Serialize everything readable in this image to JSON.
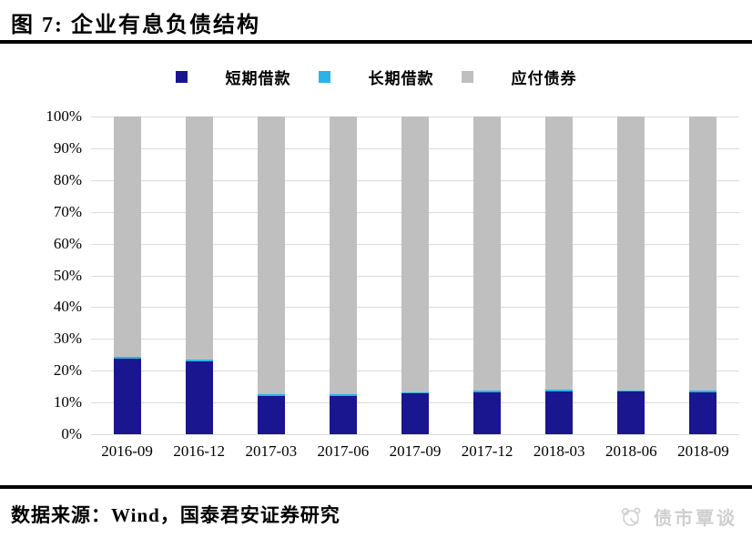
{
  "header": {
    "title": "图 7: 企业有息负债结构"
  },
  "legend": {
    "items": [
      {
        "label": "短期借款",
        "color": "#19168f"
      },
      {
        "label": "长期借款",
        "color": "#2bb3e8"
      },
      {
        "label": "应付债券",
        "color": "#bfbfbf"
      }
    ]
  },
  "chart_data": {
    "type": "bar",
    "stacked": true,
    "unit": "percent",
    "title": "企业有息负债结构",
    "categories": [
      "2016-09",
      "2016-12",
      "2017-03",
      "2017-06",
      "2017-09",
      "2017-12",
      "2018-03",
      "2018-06",
      "2018-09"
    ],
    "series": [
      {
        "name": "短期借款",
        "color": "#19168f",
        "values": [
          23.7,
          22.8,
          12.0,
          12.1,
          12.8,
          13.2,
          13.5,
          13.4,
          13.1
        ]
      },
      {
        "name": "长期借款",
        "color": "#2bb3e8",
        "values": [
          0.6,
          0.6,
          0.5,
          0.5,
          0.5,
          0.5,
          0.5,
          0.5,
          0.6
        ]
      },
      {
        "name": "应付债券",
        "color": "#bfbfbf",
        "values": [
          75.7,
          76.6,
          87.5,
          87.4,
          86.7,
          86.3,
          86.0,
          86.1,
          86.3
        ]
      }
    ],
    "ylim": [
      0,
      100
    ],
    "yticks": [
      "100%",
      "90%",
      "80%",
      "70%",
      "60%",
      "50%",
      "40%",
      "30%",
      "20%",
      "10%",
      "0%"
    ],
    "grid": true,
    "legend_position": "top"
  },
  "footer": {
    "source": "数据来源：Wind，国泰君安证券研究",
    "watermark": "债市覃谈"
  }
}
